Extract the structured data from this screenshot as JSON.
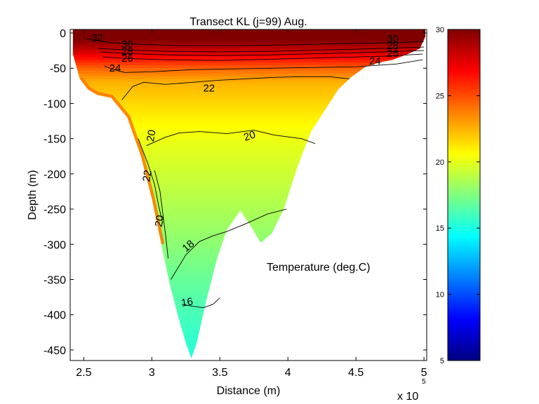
{
  "chart_data": {
    "type": "heatmap",
    "title": "Transect KL  (j=99)  Aug.",
    "xlabel": "Distance (m)",
    "ylabel": "Depth (m)",
    "x_exponent_label": "x 10",
    "x_exponent": "5",
    "xlim": [
      2.4,
      5.02
    ],
    "ylim": [
      -465,
      5
    ],
    "x_ticks": [
      2.5,
      3,
      3.5,
      4,
      4.5,
      5
    ],
    "x_tick_labels": [
      "2.5",
      "3",
      "3.5",
      "4",
      "4.5",
      "5"
    ],
    "y_ticks": [
      0,
      -50,
      -100,
      -150,
      -200,
      -250,
      -300,
      -350,
      -400,
      -450
    ],
    "y_tick_labels": [
      "0",
      "-50",
      "-100",
      "-150",
      "-200",
      "-250",
      "-300",
      "-350",
      "-400",
      "-450"
    ],
    "colorbar": {
      "range": [
        5,
        30
      ],
      "ticks": [
        5,
        10,
        15,
        20,
        25,
        30
      ],
      "tick_labels": [
        "5",
        "10",
        "15",
        "20",
        "25",
        "30"
      ],
      "colormap": "jet"
    },
    "annotation": "Temperature (deg.C)",
    "bottom_profile": [
      [
        2.42,
        5
      ],
      [
        2.42,
        -30
      ],
      [
        2.47,
        -65
      ],
      [
        2.53,
        -80
      ],
      [
        2.6,
        -88
      ],
      [
        2.7,
        -92
      ],
      [
        2.82,
        -120
      ],
      [
        2.92,
        -175
      ],
      [
        3.0,
        -235
      ],
      [
        3.07,
        -300
      ],
      [
        3.13,
        -355
      ],
      [
        3.19,
        -400
      ],
      [
        3.25,
        -440
      ],
      [
        3.29,
        -462
      ],
      [
        3.33,
        -440
      ],
      [
        3.4,
        -380
      ],
      [
        3.48,
        -320
      ],
      [
        3.55,
        -280
      ],
      [
        3.65,
        -252
      ],
      [
        3.73,
        -275
      ],
      [
        3.8,
        -298
      ],
      [
        3.88,
        -285
      ],
      [
        3.97,
        -250
      ],
      [
        4.07,
        -190
      ],
      [
        4.17,
        -140
      ],
      [
        4.27,
        -110
      ],
      [
        4.37,
        -80
      ],
      [
        4.47,
        -62
      ],
      [
        4.57,
        -48
      ],
      [
        4.67,
        -42
      ],
      [
        4.77,
        -38
      ],
      [
        4.88,
        -30
      ],
      [
        4.97,
        -22
      ],
      [
        5.01,
        -5
      ],
      [
        5.01,
        5
      ]
    ],
    "contours": [
      {
        "level": 32,
        "points": [
          [
            2.52,
            -8
          ],
          [
            2.7,
            -14
          ],
          [
            2.9,
            -16
          ],
          [
            3.2,
            -18
          ],
          [
            3.6,
            -18
          ],
          [
            4.0,
            -17
          ],
          [
            4.4,
            -15
          ],
          [
            4.75,
            -14
          ],
          [
            5.0,
            -12
          ]
        ]
      },
      {
        "level": 30,
        "points": [
          [
            2.6,
            -22
          ],
          [
            2.8,
            -24
          ],
          [
            3.1,
            -26
          ],
          [
            3.5,
            -27
          ],
          [
            3.9,
            -26
          ],
          [
            4.3,
            -24
          ],
          [
            4.7,
            -22
          ],
          [
            5.0,
            -20
          ]
        ]
      },
      {
        "level": 28,
        "points": [
          [
            2.62,
            -27
          ],
          [
            2.8,
            -29
          ],
          [
            3.1,
            -31
          ],
          [
            3.5,
            -32
          ],
          [
            3.9,
            -31
          ],
          [
            4.3,
            -29
          ],
          [
            4.7,
            -27
          ],
          [
            5.0,
            -25
          ]
        ]
      },
      {
        "level": 26,
        "points": [
          [
            2.64,
            -34
          ],
          [
            2.8,
            -36
          ],
          [
            3.1,
            -38
          ],
          [
            3.5,
            -39
          ],
          [
            3.9,
            -37
          ],
          [
            4.3,
            -35
          ],
          [
            4.7,
            -33
          ],
          [
            4.99,
            -30
          ]
        ]
      },
      {
        "level": 24,
        "points": [
          [
            2.65,
            -47
          ],
          [
            2.72,
            -52
          ],
          [
            2.8,
            -56
          ],
          [
            3.0,
            -55
          ],
          [
            3.3,
            -52
          ],
          [
            3.6,
            -51
          ],
          [
            3.9,
            -50
          ],
          [
            4.2,
            -49
          ],
          [
            4.5,
            -48
          ],
          [
            4.8,
            -44
          ],
          [
            4.99,
            -38
          ]
        ]
      },
      {
        "level": 22,
        "points": [
          [
            2.78,
            -95
          ],
          [
            2.86,
            -76
          ],
          [
            2.94,
            -70
          ],
          [
            3.1,
            -73
          ],
          [
            3.3,
            -70
          ],
          [
            3.5,
            -67
          ],
          [
            3.7,
            -65
          ],
          [
            3.9,
            -63
          ],
          [
            4.1,
            -62
          ],
          [
            4.3,
            -62
          ],
          [
            4.45,
            -65
          ]
        ]
      },
      {
        "level": 20,
        "points": [
          [
            2.96,
            -160
          ],
          [
            3.1,
            -148
          ],
          [
            3.2,
            -142
          ],
          [
            3.35,
            -140
          ],
          [
            3.55,
            -143
          ],
          [
            3.75,
            -138
          ],
          [
            3.9,
            -145
          ],
          [
            4.1,
            -150
          ],
          [
            4.2,
            -157
          ]
        ]
      },
      {
        "level": 18,
        "points": [
          [
            3.14,
            -350
          ],
          [
            3.25,
            -315
          ],
          [
            3.35,
            -296
          ],
          [
            3.45,
            -288
          ],
          [
            3.55,
            -282
          ],
          [
            3.7,
            -270
          ],
          [
            3.85,
            -257
          ],
          [
            3.99,
            -250
          ]
        ]
      },
      {
        "level": 16,
        "points": [
          [
            3.22,
            -385
          ],
          [
            3.3,
            -388
          ],
          [
            3.38,
            -390
          ],
          [
            3.45,
            -385
          ],
          [
            3.5,
            -376
          ]
        ]
      },
      {
        "level": 22,
        "points": [
          [
            2.9,
            -150
          ],
          [
            2.97,
            -185
          ],
          [
            3.02,
            -215
          ],
          [
            3.05,
            -245
          ],
          [
            3.08,
            -270
          ]
        ]
      },
      {
        "level": 20,
        "points": [
          [
            3.02,
            -195
          ],
          [
            3.06,
            -225
          ],
          [
            3.08,
            -255
          ],
          [
            3.1,
            -285
          ],
          [
            3.12,
            -320
          ]
        ]
      }
    ],
    "contour_labels": [
      {
        "text": "32",
        "x": 2.6,
        "y": -8,
        "angle": 0
      },
      {
        "text": "30",
        "x": 2.82,
        "y": -17,
        "angle": 0
      },
      {
        "text": "28",
        "x": 2.82,
        "y": -27,
        "angle": 0
      },
      {
        "text": "26",
        "x": 2.82,
        "y": -37,
        "angle": 0
      },
      {
        "text": "24",
        "x": 2.73,
        "y": -51,
        "angle": 0
      },
      {
        "text": "22",
        "x": 3.42,
        "y": -79,
        "angle": 0
      },
      {
        "text": "20",
        "x": 3.72,
        "y": -147,
        "angle": -18
      },
      {
        "text": "20",
        "x": 3.0,
        "y": -146,
        "angle": -80
      },
      {
        "text": "22",
        "x": 2.97,
        "y": -203,
        "angle": -80
      },
      {
        "text": "20",
        "x": 3.06,
        "y": -267,
        "angle": -80
      },
      {
        "text": "18",
        "x": 3.27,
        "y": -303,
        "angle": -40
      },
      {
        "text": "16",
        "x": 3.26,
        "y": -383,
        "angle": -10
      },
      {
        "text": "30",
        "x": 4.77,
        "y": -9,
        "angle": 0
      },
      {
        "text": "28",
        "x": 4.77,
        "y": -19,
        "angle": 0
      },
      {
        "text": "26",
        "x": 4.77,
        "y": -30,
        "angle": 0
      },
      {
        "text": "24",
        "x": 4.64,
        "y": -41,
        "angle": 0
      }
    ],
    "temperature_field": {
      "surface_value": 31,
      "thermocline_bottom": -70,
      "profile": [
        [
          0,
          31
        ],
        [
          -10,
          30
        ],
        [
          -30,
          27.5
        ],
        [
          -50,
          24.5
        ],
        [
          -70,
          22.5
        ],
        [
          -100,
          21.6
        ],
        [
          -140,
          20.4
        ],
        [
          -180,
          19.7
        ],
        [
          -250,
          18.6
        ],
        [
          -300,
          17.8
        ],
        [
          -350,
          16.9
        ],
        [
          -400,
          16.1
        ],
        [
          -465,
          15.2
        ]
      ],
      "left_slope_warm_band": 24
    }
  }
}
